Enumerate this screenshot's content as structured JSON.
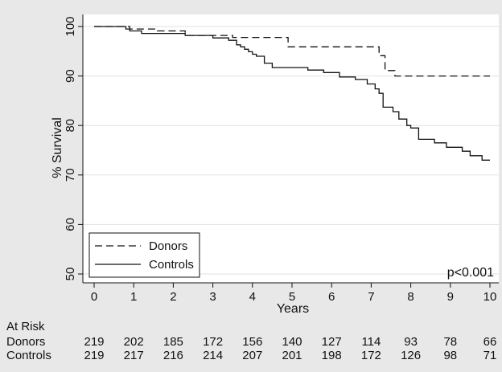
{
  "chart_data": {
    "type": "line",
    "subtype": "kaplan-meier",
    "xlabel": "Years",
    "ylabel": "% Survival",
    "xlim": [
      0,
      10
    ],
    "ylim": [
      50,
      100
    ],
    "xticks": [
      "0",
      "1",
      "2",
      "3",
      "4",
      "5",
      "6",
      "7",
      "8",
      "9",
      "10"
    ],
    "yticks": [
      "50",
      "60",
      "70",
      "80",
      "90",
      "100"
    ],
    "grid": "horizontal",
    "legend_position": "bottom-left",
    "annotation": "p<0.001",
    "series": [
      {
        "name": "Donors",
        "line_style": "dashed",
        "color": "#111111",
        "x": [
          0,
          0.9,
          1.6,
          2.3,
          3.5,
          4.9,
          7.2,
          7.35,
          7.6,
          10
        ],
        "y": [
          100,
          99.5,
          99.1,
          98.2,
          97.8,
          95.9,
          94.1,
          91.1,
          90.0,
          90.0
        ]
      },
      {
        "name": "Controls",
        "line_style": "solid",
        "color": "#111111",
        "x": [
          0,
          0.8,
          0.9,
          1.2,
          2.3,
          3.0,
          3.4,
          3.6,
          3.7,
          3.8,
          3.9,
          4.0,
          4.1,
          4.3,
          4.5,
          5.4,
          5.8,
          6.2,
          6.6,
          6.9,
          7.1,
          7.2,
          7.3,
          7.55,
          7.7,
          7.9,
          8.0,
          8.2,
          8.6,
          8.9,
          9.3,
          9.5,
          9.8,
          10
        ],
        "y": [
          100,
          99.5,
          99.1,
          98.6,
          98.2,
          97.7,
          97.2,
          96.3,
          95.9,
          95.4,
          94.9,
          94.4,
          94.0,
          92.6,
          91.7,
          91.2,
          90.7,
          89.8,
          89.3,
          88.4,
          87.4,
          86.5,
          83.7,
          82.8,
          81.3,
          80.0,
          79.5,
          77.2,
          76.5,
          75.6,
          74.8,
          73.9,
          73.0,
          73.0
        ]
      }
    ],
    "at_risk": {
      "title": "At Risk",
      "rows": [
        {
          "label": "Donors",
          "values": [
            "219",
            "202",
            "185",
            "172",
            "156",
            "140",
            "127",
            "114",
            "93",
            "78",
            "66"
          ]
        },
        {
          "label": "Controls",
          "values": [
            "219",
            "217",
            "216",
            "214",
            "207",
            "201",
            "198",
            "172",
            "126",
            "98",
            "71"
          ]
        }
      ]
    }
  }
}
